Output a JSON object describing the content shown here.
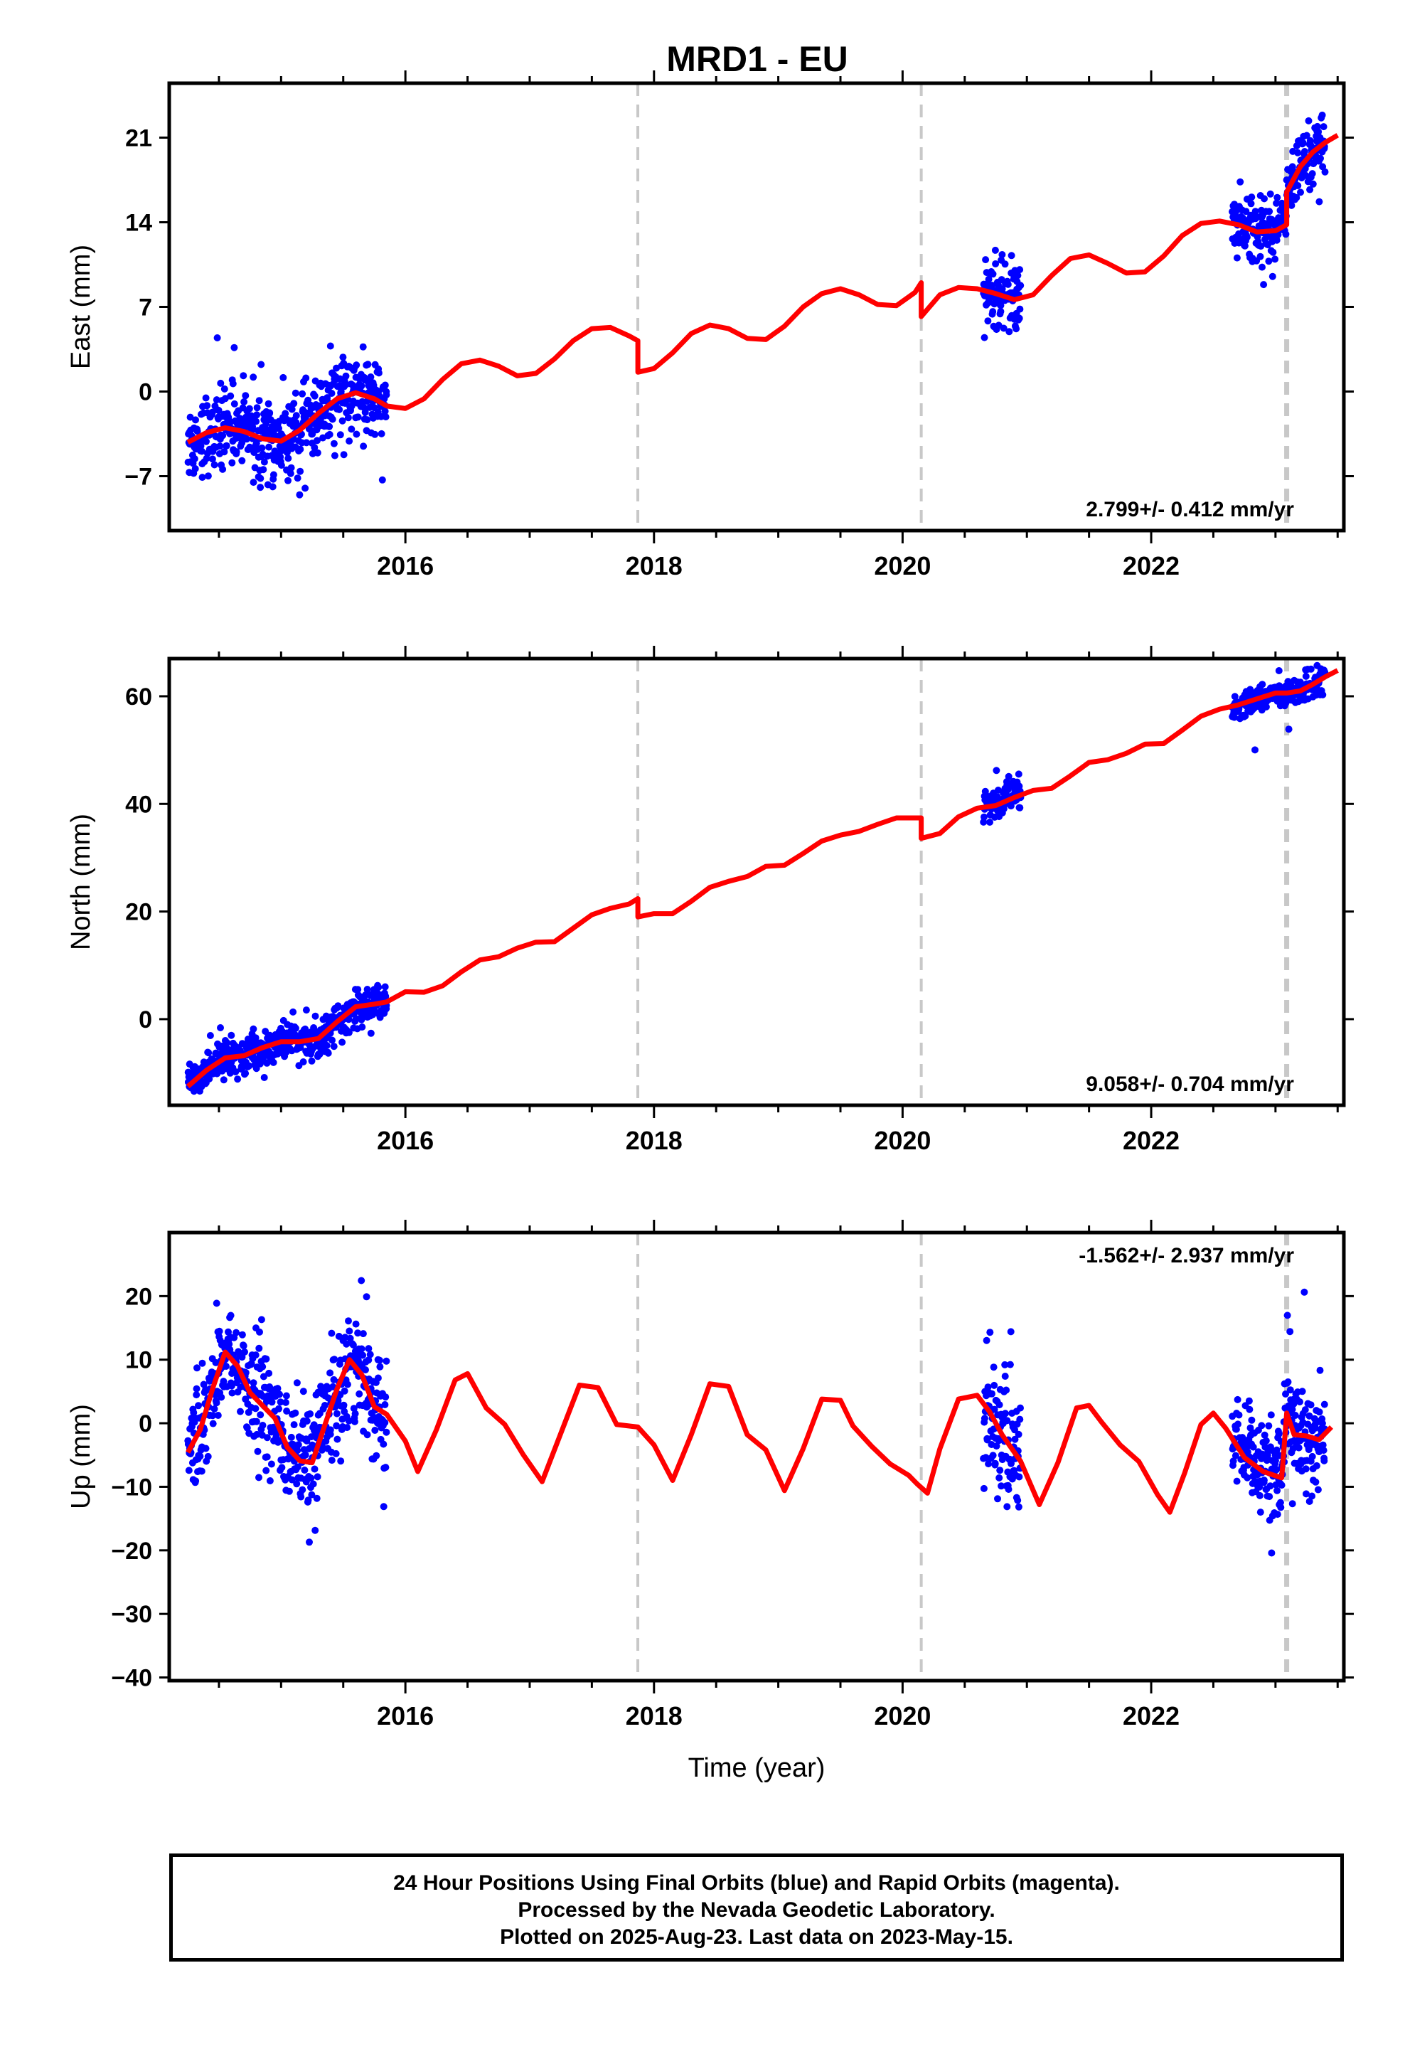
{
  "title": "MRD1 - EU",
  "caption": {
    "lines": [
      "24 Hour Positions Using Final Orbits (blue) and Rapid Orbits (magenta).",
      "Processed by the Nevada Geodetic Laboratory.",
      "Plotted on 2025-Aug-23. Last data on 2023-May-15."
    ]
  },
  "colors": {
    "points": "#0000ff",
    "model": "#ff0000",
    "breaks": "#c8c8c8",
    "frame": "#000000"
  },
  "chart_data": [
    {
      "type": "scatter",
      "ylabel": "East (mm)",
      "xlabel": "",
      "xlim": [
        2014.1,
        2023.55
      ],
      "ylim": [
        -11.5,
        25.5
      ],
      "yticks": [
        -7,
        0,
        7,
        14,
        21
      ],
      "ytick_labels": [
        "−7",
        "0",
        "7",
        "14",
        "21"
      ],
      "xticks": [
        2016,
        2018,
        2020,
        2022
      ],
      "xtick_labels": [
        "2016",
        "2018",
        "2020",
        "2022"
      ],
      "rate_label": "2.799+/- 0.412 mm/yr",
      "rate_position": "bottom-right",
      "breaks": [
        2017.87,
        2020.15,
        2023.09
      ],
      "model": {
        "name": "",
        "x": [
          2014.25,
          2014.4,
          2014.55,
          2014.7,
          2014.85,
          2015.0,
          2015.15,
          2015.3,
          2015.45,
          2015.6,
          2015.75,
          2015.85,
          2016.0,
          2016.15,
          2016.3,
          2016.45,
          2016.6,
          2016.75,
          2016.9,
          2017.05,
          2017.2,
          2017.35,
          2017.5,
          2017.65,
          2017.8,
          2017.87,
          2017.87,
          2018.0,
          2018.15,
          2018.3,
          2018.45,
          2018.6,
          2018.75,
          2018.9,
          2019.05,
          2019.2,
          2019.35,
          2019.5,
          2019.65,
          2019.8,
          2019.95,
          2020.1,
          2020.15,
          2020.15,
          2020.3,
          2020.45,
          2020.6,
          2020.75,
          2020.9,
          2021.05,
          2021.2,
          2021.35,
          2021.5,
          2021.65,
          2021.8,
          2021.95,
          2022.1,
          2022.25,
          2022.4,
          2022.55,
          2022.7,
          2022.85,
          2023.0,
          2023.09,
          2023.09,
          2023.2,
          2023.3,
          2023.4,
          2023.5
        ],
        "y": [
          -4.2,
          -3.4,
          -3.0,
          -3.3,
          -3.9,
          -4.1,
          -3.2,
          -1.8,
          -0.6,
          -0.1,
          -0.6,
          -1.2,
          -1.4,
          -0.6,
          1.0,
          2.3,
          2.6,
          2.1,
          1.3,
          1.5,
          2.7,
          4.2,
          5.2,
          5.3,
          4.6,
          4.2,
          1.6,
          1.9,
          3.2,
          4.8,
          5.5,
          5.2,
          4.4,
          4.3,
          5.4,
          7.0,
          8.1,
          8.5,
          8.0,
          7.2,
          7.1,
          8.2,
          9.0,
          6.2,
          8.0,
          8.6,
          8.5,
          8.1,
          7.6,
          8.0,
          9.6,
          11.0,
          11.3,
          10.6,
          9.8,
          9.9,
          11.2,
          12.9,
          13.9,
          14.1,
          13.8,
          13.2,
          13.3,
          13.8,
          16.5,
          18.6,
          19.8,
          20.6,
          21.2
        ]
      },
      "points": {
        "name": "",
        "segments": [
          {
            "x_range": [
              2014.25,
              2015.85
            ],
            "spread": 1.6
          },
          {
            "x_range": [
              2020.65,
              2020.95
            ],
            "spread": 1.4
          },
          {
            "x_range": [
              2022.65,
              2023.1
            ],
            "spread": 1.3
          },
          {
            "x_range": [
              2023.1,
              2023.4
            ],
            "spread": 1.4
          }
        ]
      }
    },
    {
      "type": "scatter",
      "ylabel": "North (mm)",
      "xlabel": "",
      "xlim": [
        2014.1,
        2023.55
      ],
      "ylim": [
        -16,
        67
      ],
      "yticks": [
        0,
        20,
        40,
        60
      ],
      "ytick_labels": [
        "0",
        "20",
        "40",
        "60"
      ],
      "xticks": [
        2016,
        2018,
        2020,
        2022
      ],
      "xtick_labels": [
        "2016",
        "2018",
        "2020",
        "2022"
      ],
      "rate_label": "9.058+/- 0.704 mm/yr",
      "rate_position": "bottom-right",
      "breaks": [
        2017.87,
        2020.15,
        2023.09
      ],
      "model": {
        "name": "",
        "x": [
          2014.25,
          2014.4,
          2014.55,
          2014.7,
          2014.85,
          2015.0,
          2015.15,
          2015.3,
          2015.45,
          2015.6,
          2015.75,
          2015.85,
          2016.0,
          2016.15,
          2016.3,
          2016.45,
          2016.6,
          2016.75,
          2016.9,
          2017.05,
          2017.2,
          2017.35,
          2017.5,
          2017.65,
          2017.8,
          2017.87,
          2017.87,
          2018.0,
          2018.15,
          2018.3,
          2018.45,
          2018.6,
          2018.75,
          2018.9,
          2019.05,
          2019.2,
          2019.35,
          2019.5,
          2019.65,
          2019.8,
          2019.95,
          2020.1,
          2020.15,
          2020.15,
          2020.3,
          2020.45,
          2020.6,
          2020.75,
          2020.9,
          2021.05,
          2021.2,
          2021.35,
          2021.5,
          2021.65,
          2021.8,
          2021.95,
          2022.1,
          2022.25,
          2022.4,
          2022.55,
          2022.7,
          2022.85,
          2023.0,
          2023.09,
          2023.2,
          2023.3,
          2023.4,
          2023.5
        ],
        "y": [
          -12.5,
          -9.5,
          -7.2,
          -6.8,
          -5.3,
          -4.2,
          -4.2,
          -3.6,
          -0.5,
          2.3,
          2.8,
          3.2,
          5.1,
          5.0,
          6.2,
          8.8,
          11.0,
          11.6,
          13.2,
          14.3,
          14.4,
          16.9,
          19.4,
          20.6,
          21.4,
          22.4,
          19.0,
          19.6,
          19.6,
          21.9,
          24.5,
          25.6,
          26.5,
          28.4,
          28.6,
          30.8,
          33.1,
          34.2,
          34.9,
          36.2,
          37.4,
          37.4,
          37.4,
          33.6,
          34.5,
          37.6,
          39.2,
          39.7,
          41.2,
          42.5,
          42.9,
          45.2,
          47.7,
          48.2,
          49.4,
          51.1,
          51.2,
          53.7,
          56.3,
          57.6,
          58.4,
          59.5,
          60.6,
          60.6,
          61.0,
          62.2,
          63.6,
          64.8
        ]
      },
      "points": {
        "name": "",
        "segments": [
          {
            "x_range": [
              2014.25,
              2015.85
            ],
            "spread": 1.7
          },
          {
            "x_range": [
              2020.65,
              2020.95
            ],
            "spread": 1.6
          },
          {
            "x_range": [
              2022.65,
              2023.1
            ],
            "spread": 1.2
          },
          {
            "x_range": [
              2023.1,
              2023.4
            ],
            "spread": 1.2
          }
        ]
      }
    },
    {
      "type": "scatter",
      "ylabel": "Up (mm)",
      "xlabel": "Time (year)",
      "xlim": [
        2014.1,
        2023.55
      ],
      "ylim": [
        -40.5,
        30
      ],
      "yticks": [
        -40,
        -30,
        -20,
        -10,
        0,
        10,
        20
      ],
      "ytick_labels": [
        "−40",
        "−30",
        "−20",
        "−10",
        "0",
        "10",
        "20"
      ],
      "xticks": [
        2016,
        2018,
        2020,
        2022
      ],
      "xtick_labels": [
        "2016",
        "2018",
        "2020",
        "2022"
      ],
      "rate_label": "-1.562+/- 2.937 mm/yr",
      "rate_position": "top-right",
      "breaks": [
        2017.87,
        2020.15,
        2023.09
      ],
      "model": {
        "name": "",
        "x": [
          2014.25,
          2014.35,
          2014.45,
          2014.55,
          2014.65,
          2014.75,
          2014.85,
          2014.95,
          2015.05,
          2015.15,
          2015.25,
          2015.35,
          2015.45,
          2015.55,
          2015.65,
          2015.75,
          2015.85,
          2016.0,
          2016.1,
          2016.25,
          2016.4,
          2016.5,
          2016.65,
          2016.8,
          2016.95,
          2017.1,
          2017.25,
          2017.4,
          2017.55,
          2017.7,
          2017.87,
          2018.0,
          2018.15,
          2018.3,
          2018.45,
          2018.6,
          2018.75,
          2018.9,
          2019.05,
          2019.2,
          2019.35,
          2019.5,
          2019.6,
          2019.75,
          2019.9,
          2020.05,
          2020.12,
          2020.2,
          2020.3,
          2020.45,
          2020.6,
          2020.7,
          2020.8,
          2020.95,
          2021.1,
          2021.25,
          2021.4,
          2021.5,
          2021.6,
          2021.75,
          2021.9,
          2022.05,
          2022.15,
          2022.27,
          2022.4,
          2022.5,
          2022.6,
          2022.75,
          2022.9,
          2023.05,
          2023.09,
          2023.15,
          2023.25,
          2023.35,
          2023.45
        ],
        "y": [
          -4.6,
          -1.0,
          5.5,
          11.2,
          9.0,
          4.8,
          2.8,
          0.8,
          -3.8,
          -5.9,
          -6.2,
          -0.4,
          5.4,
          10.0,
          7.6,
          2.6,
          1.4,
          -2.8,
          -7.6,
          -1.0,
          6.8,
          7.8,
          2.4,
          -0.2,
          -5.0,
          -9.2,
          -1.6,
          6.0,
          5.6,
          -0.2,
          -0.6,
          -3.4,
          -9.0,
          -1.8,
          6.2,
          5.8,
          -1.8,
          -4.2,
          -10.6,
          -4.0,
          3.8,
          3.6,
          -0.4,
          -3.6,
          -6.4,
          -8.2,
          -9.6,
          -11.0,
          -4.0,
          3.8,
          4.4,
          1.8,
          -1.8,
          -6.0,
          -12.8,
          -6.2,
          2.4,
          2.8,
          0.2,
          -3.4,
          -6.0,
          -11.2,
          -14.0,
          -7.8,
          -0.2,
          1.6,
          -0.8,
          -5.4,
          -7.6,
          -8.6,
          1.6,
          -1.8,
          -2.0,
          -2.6,
          -0.6
        ]
      },
      "points": {
        "name": "",
        "segments": [
          {
            "x_range": [
              2014.25,
              2015.85
            ],
            "spread": 4.5
          },
          {
            "x_range": [
              2020.65,
              2020.95
            ],
            "spread": 5.5
          },
          {
            "x_range": [
              2022.65,
              2023.1
            ],
            "spread": 4.0
          },
          {
            "x_range": [
              2023.1,
              2023.4
            ],
            "spread": 4.5
          }
        ]
      }
    }
  ]
}
